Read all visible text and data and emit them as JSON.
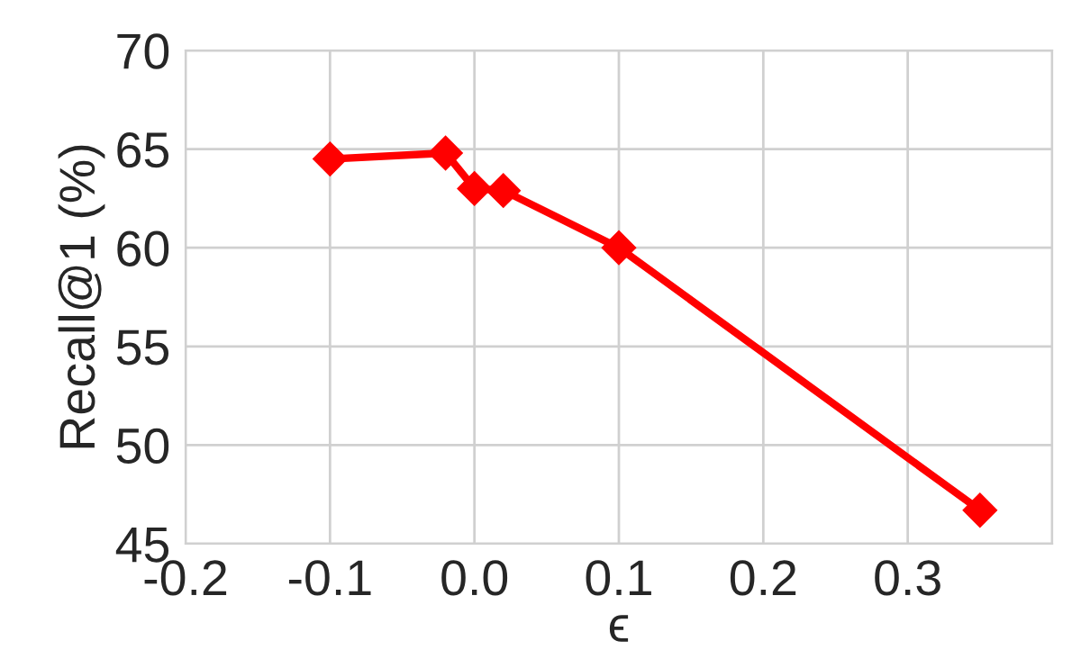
{
  "chart_data": {
    "type": "line",
    "xlabel": "ϵ",
    "ylabel": "Recall@1 (%)",
    "x": [
      -0.1,
      -0.02,
      0.0,
      0.02,
      0.1,
      0.35
    ],
    "series": [
      {
        "color": "#ff0000",
        "values": [
          64.5,
          64.8,
          63.0,
          62.9,
          60.0,
          46.7
        ]
      }
    ],
    "xlim": [
      -0.2,
      0.4
    ],
    "xticks": [
      -0.2,
      -0.1,
      {
        "value": 0.0,
        "label": "0.0"
      },
      0.1,
      0.2,
      0.3,
      {
        "value": 0.4,
        "label": null
      }
    ],
    "ylim": [
      45,
      70
    ],
    "yticks": [
      45,
      50,
      55,
      60,
      65,
      70
    ],
    "grid": true,
    "marker": "diamond",
    "line_style": "solid"
  }
}
